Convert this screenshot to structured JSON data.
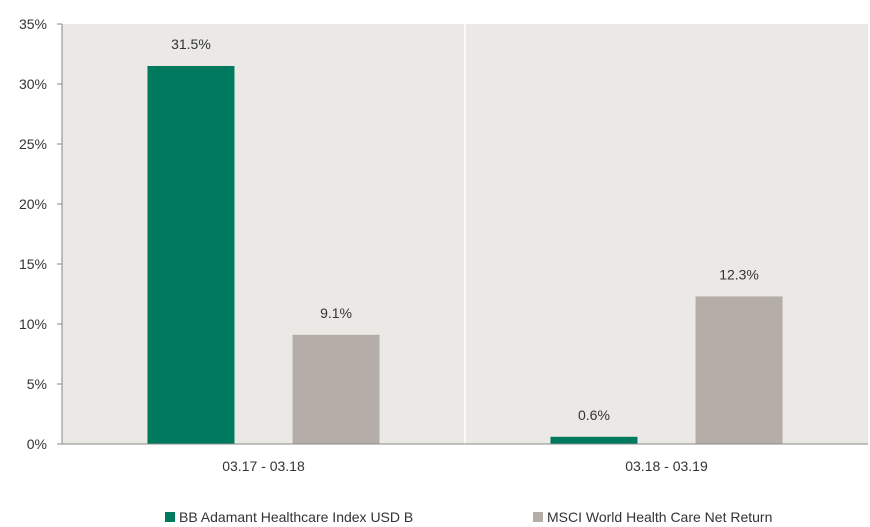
{
  "chart_data": {
    "type": "bar",
    "categories": [
      "03.17 - 03.18",
      "03.18 - 03.19"
    ],
    "series": [
      {
        "name": "BB Adamant Healthcare Index USD B",
        "values": [
          31.5,
          0.6
        ],
        "labels": [
          "31.5%",
          "0.6%"
        ],
        "color": "#007a5e"
      },
      {
        "name": "MSCI World Health Care Net Return",
        "values": [
          9.1,
          12.3
        ],
        "labels": [
          "9.1%",
          "12.3%"
        ],
        "color": "#b5aea8"
      }
    ],
    "ylim": [
      0,
      35
    ],
    "yticks": [
      "0%",
      "5%",
      "10%",
      "15%",
      "20%",
      "25%",
      "30%",
      "35%"
    ],
    "ytick_values": [
      0,
      5,
      10,
      15,
      20,
      25,
      30,
      35
    ],
    "xlabel": "",
    "ylabel": "",
    "title": "",
    "grid": false,
    "legend_position": "bottom",
    "plot_background": "#ebe9e5"
  }
}
